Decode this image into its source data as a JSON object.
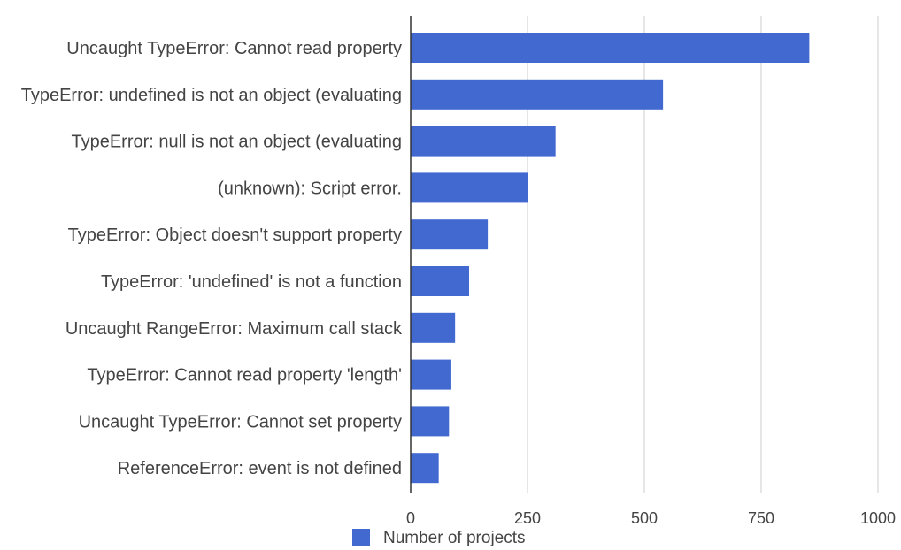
{
  "chart_data": {
    "type": "bar",
    "orientation": "horizontal",
    "categories": [
      "Uncaught TypeError: Cannot read property",
      "TypeError: undefined is not an object (evaluating",
      "TypeError: null is not an object (evaluating",
      "(unknown): Script error.",
      "TypeError: Object doesn't support property",
      "TypeError: 'undefined' is not a function",
      "Uncaught RangeError: Maximum call stack",
      "TypeError: Cannot read property 'length'",
      "Uncaught TypeError: Cannot set property",
      "ReferenceError: event is not defined"
    ],
    "series": [
      {
        "name": "Number of projects",
        "values": [
          853,
          540,
          310,
          250,
          165,
          125,
          95,
          87,
          82,
          60
        ]
      }
    ],
    "xlim": [
      0,
      1000
    ],
    "xticks": [
      0,
      250,
      500,
      750,
      1000
    ],
    "grid": true,
    "legend_position": "bottom",
    "colors": {
      "bar": "#4169D0",
      "grid": "#cccccc",
      "axis": "#333333",
      "text": "#444444"
    }
  }
}
